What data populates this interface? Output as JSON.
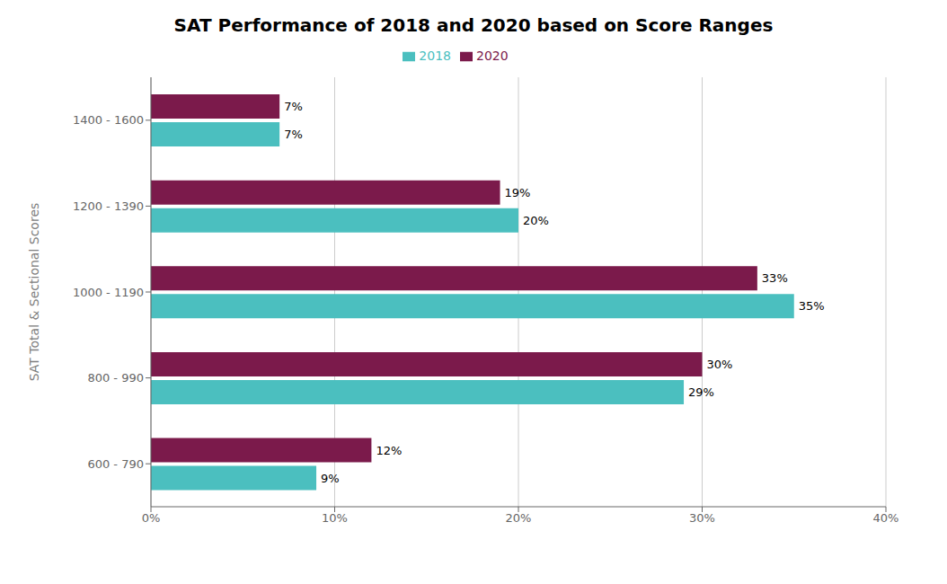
{
  "chart_data": {
    "type": "bar",
    "orientation": "horizontal",
    "title": "SAT Performance of 2018 and 2020 based on Score Ranges",
    "ylabel": "SAT Total & Sectional Scores",
    "categories": [
      "600 - 790",
      "800 - 990",
      "1000 - 1190",
      "1200 - 1390",
      "1400 - 1600"
    ],
    "series": [
      {
        "name": "2020",
        "color": "#7B1A4B",
        "values": [
          12,
          30,
          33,
          19,
          7
        ],
        "value_labels": [
          "12%",
          "30%",
          "33%",
          "19%",
          "7%"
        ]
      },
      {
        "name": "2018",
        "color": "#4BBFBF",
        "values": [
          9,
          29,
          35,
          20,
          7
        ],
        "value_labels": [
          "9%",
          "29%",
          "35%",
          "20%",
          "7%"
        ]
      }
    ],
    "xlim": [
      0,
      40
    ],
    "xticks": [
      {
        "value": 0,
        "label": "0%"
      },
      {
        "value": 10,
        "label": "10%"
      },
      {
        "value": 20,
        "label": "20%"
      },
      {
        "value": 30,
        "label": "30%"
      },
      {
        "value": 40,
        "label": "40%"
      }
    ],
    "grid": true,
    "legend": "top",
    "data_labels": true
  }
}
